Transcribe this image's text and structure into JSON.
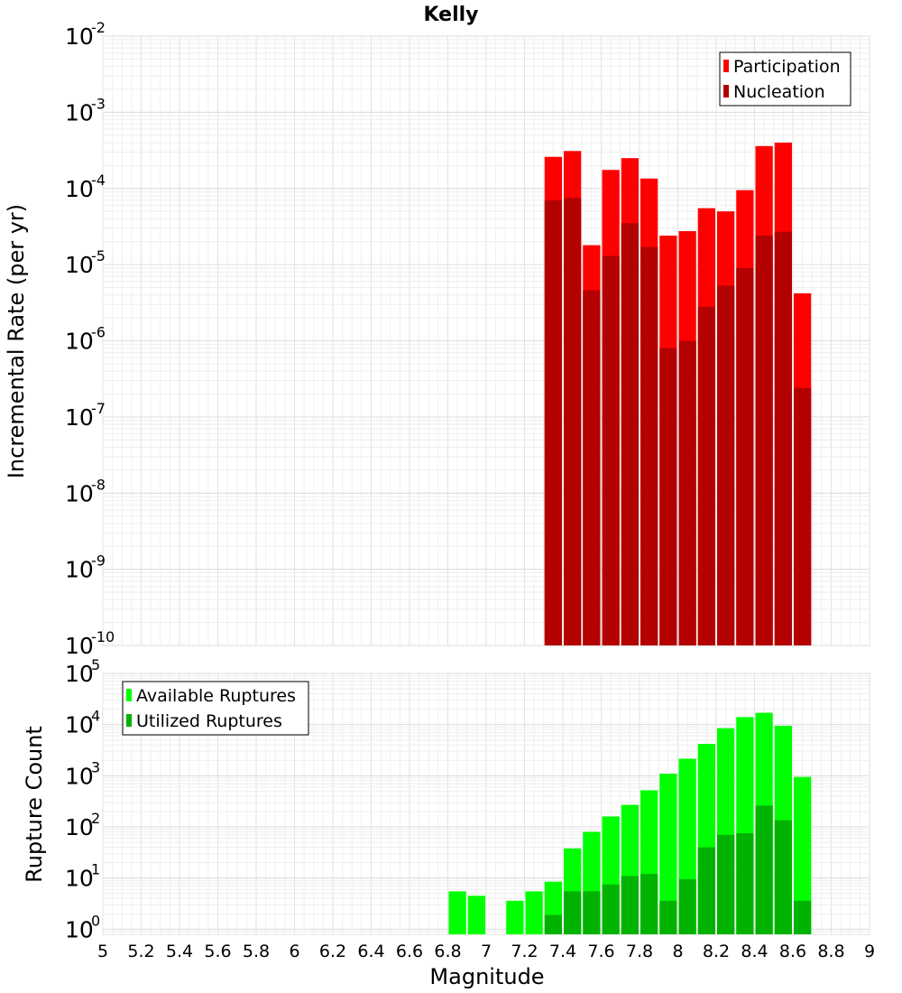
{
  "chart_data": {
    "title": "Kelly",
    "xlabel": "Magnitude",
    "xlim": [
      5,
      9
    ],
    "xticks": [
      "5",
      "5.2",
      "5.4",
      "5.6",
      "5.8",
      "6",
      "6.2",
      "6.4",
      "6.6",
      "6.8",
      "7",
      "7.2",
      "7.4",
      "7.6",
      "7.8",
      "8",
      "8.2",
      "8.4",
      "8.6",
      "8.8",
      "9"
    ],
    "bin_width": 0.1,
    "panels": [
      {
        "type": "bar",
        "yscale": "log",
        "ylabel": "Incremental Rate (per yr)",
        "ylim_exponents": [
          -10,
          -2
        ],
        "ytick_base": "10",
        "ytick_exponents": [
          "-10",
          "-9",
          "-8",
          "-7",
          "-6",
          "-5",
          "-4",
          "-3",
          "-2"
        ],
        "legend_position": "top-right",
        "x": [
          7.35,
          7.45,
          7.55,
          7.65,
          7.75,
          7.85,
          7.95,
          8.05,
          8.15,
          8.25,
          8.35,
          8.45,
          8.55,
          8.65
        ],
        "series": [
          {
            "name": "Participation",
            "color": "#ff0000",
            "values": [
              0.00026,
              0.00031,
              1.8e-05,
              0.000175,
              0.00025,
              0.000135,
              2.4e-05,
              2.75e-05,
              5.5e-05,
              5e-05,
              9.5e-05,
              0.00036,
              0.0004,
              4.2e-06
            ]
          },
          {
            "name": "Nucleation",
            "color": "#b30000",
            "values": [
              7e-05,
              7.5e-05,
              4.6e-06,
              1.3e-05,
              3.5e-05,
              1.7e-05,
              8e-07,
              1e-06,
              2.8e-06,
              5.3e-06,
              9e-06,
              2.4e-05,
              2.7e-05,
              2.4e-07
            ]
          }
        ]
      },
      {
        "type": "bar",
        "yscale": "log",
        "ylabel": "Rupture Count",
        "ylim_exponents": [
          -0.1,
          5
        ],
        "ytick_base": "10",
        "ytick_exponents": [
          "0",
          "1",
          "2",
          "3",
          "4",
          "5"
        ],
        "legend_position": "top-left",
        "x": [
          6.85,
          6.95,
          7.05,
          7.15,
          7.25,
          7.35,
          7.45,
          7.55,
          7.65,
          7.75,
          7.85,
          7.95,
          8.05,
          8.15,
          8.25,
          8.35,
          8.45,
          8.55,
          8.65
        ],
        "series": [
          {
            "name": "Available Ruptures",
            "color": "#00ff00",
            "values": [
              5.5,
              4.5,
              0,
              3.6,
              5.5,
              8.5,
              38,
              80,
              160,
              270,
              520,
              1100,
              2150,
              4200,
              8500,
              14000,
              17000,
              9500,
              950
            ]
          },
          {
            "name": "Utilized Ruptures",
            "color": "#00b300",
            "values": [
              0,
              0,
              0,
              0,
              0,
              1.9,
              5.5,
              5.5,
              7.5,
              11,
              12,
              3.6,
              9.5,
              40,
              70,
              75,
              260,
              135,
              3.6
            ]
          }
        ]
      }
    ]
  }
}
